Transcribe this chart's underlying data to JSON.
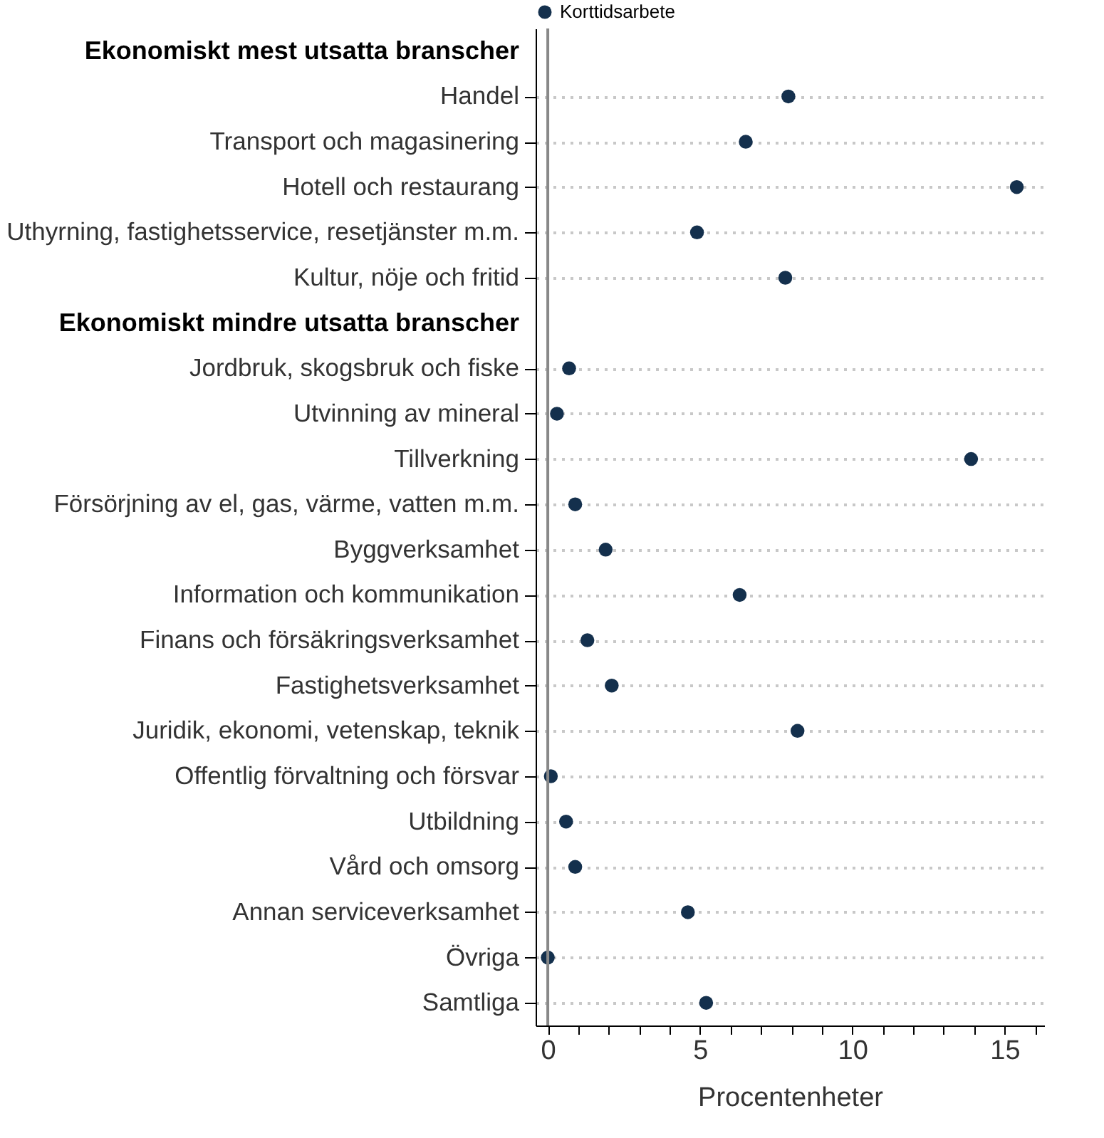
{
  "chart_data": {
    "type": "scatter",
    "orientation": "horizontal",
    "marker": "circle",
    "grid": "y",
    "legend": "top",
    "xlabel": "Procentenheter",
    "categories": [
      "Ekonomiskt mest utsatta branscher",
      "Handel",
      "Transport och magasinering",
      "Hotell och restaurang",
      "Uthyrning, fastighetsservice, resetjänster m.m.",
      "Kultur, nöje och fritid",
      "Ekonomiskt mindre utsatta branscher",
      "Jordbruk, skogsbruk och fiske",
      "Utvinning av mineral",
      "Tillverkning",
      "Försörjning av el, gas, värme, vatten m.m.",
      "Byggverksamhet",
      "Information och kommunikation",
      "Finans och försäkringsverksamhet",
      "Fastighetsverksamhet",
      "Juridik, ekonomi, vetenskap, teknik",
      "Offentlig förvaltning och försvar",
      "Utbildning",
      "Vård och omsorg",
      "Annan serviceverksamhet",
      "Övriga",
      "Samtliga"
    ],
    "series": [
      {
        "name": "Korttidsarbete",
        "color": "#14304d",
        "values": [
          null,
          7.9,
          6.5,
          15.4,
          4.9,
          7.8,
          null,
          0.7,
          0.3,
          13.9,
          0.9,
          1.9,
          6.3,
          1.3,
          2.1,
          8.2,
          0.1,
          0.6,
          0.9,
          4.6,
          0.0,
          5.2
        ]
      }
    ],
    "xlim": [
      -0.4,
      16.3
    ],
    "xticks": [
      0,
      {
        "value": 1,
        "label": null
      },
      {
        "value": 2,
        "label": null
      },
      {
        "value": 3,
        "label": null
      },
      {
        "value": 4,
        "label": null
      },
      5,
      {
        "value": 6,
        "label": null
      },
      {
        "value": 7,
        "label": null
      },
      {
        "value": 8,
        "label": null
      },
      {
        "value": 9,
        "label": null
      },
      10,
      {
        "value": 11,
        "label": null
      },
      {
        "value": 12,
        "label": null
      },
      {
        "value": 13,
        "label": null
      },
      {
        "value": 14,
        "label": null
      },
      15,
      {
        "value": 16,
        "label": null
      }
    ],
    "ref_lines": [
      {
        "axis": "x",
        "value": 0,
        "color": "#888888"
      }
    ]
  }
}
